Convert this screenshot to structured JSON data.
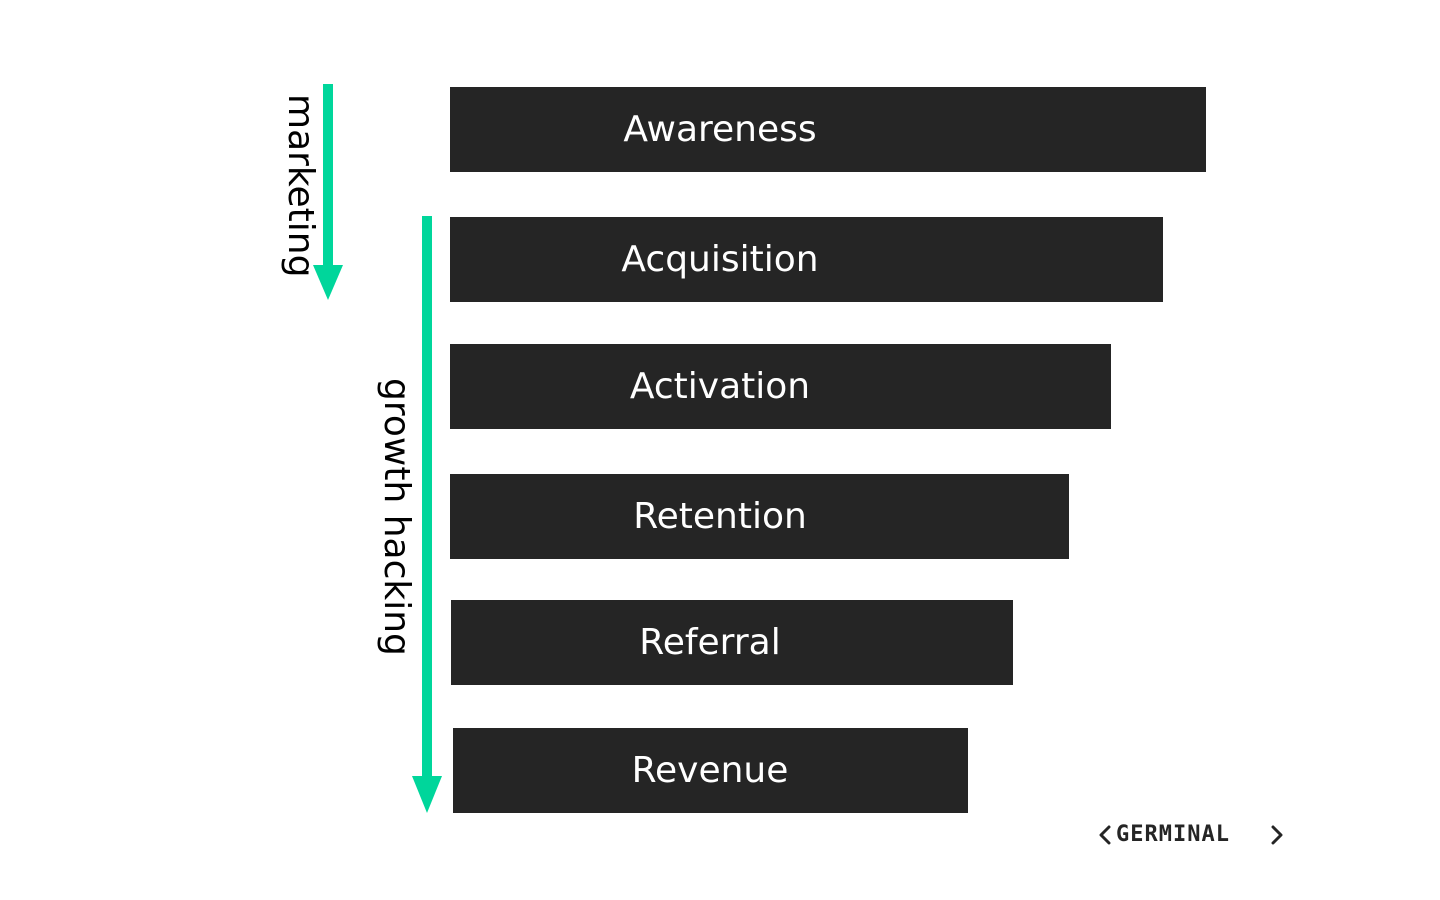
{
  "stages": [
    {
      "key": "awareness",
      "label": "Awareness"
    },
    {
      "key": "acquisition",
      "label": "Acquisition"
    },
    {
      "key": "activation",
      "label": "Activation"
    },
    {
      "key": "retention",
      "label": "Retention"
    },
    {
      "key": "referral",
      "label": "Referral"
    },
    {
      "key": "revenue",
      "label": "Revenue"
    }
  ],
  "scopes": {
    "marketing": {
      "label": "marketing"
    },
    "growth_hacking": {
      "label": "growth hacking"
    }
  },
  "brand": {
    "logo_text": "GERMINAL"
  },
  "colors": {
    "bar": "#252525",
    "bar_text": "#ffffff",
    "arrow": "#00d69b",
    "label_text": "#000000"
  }
}
